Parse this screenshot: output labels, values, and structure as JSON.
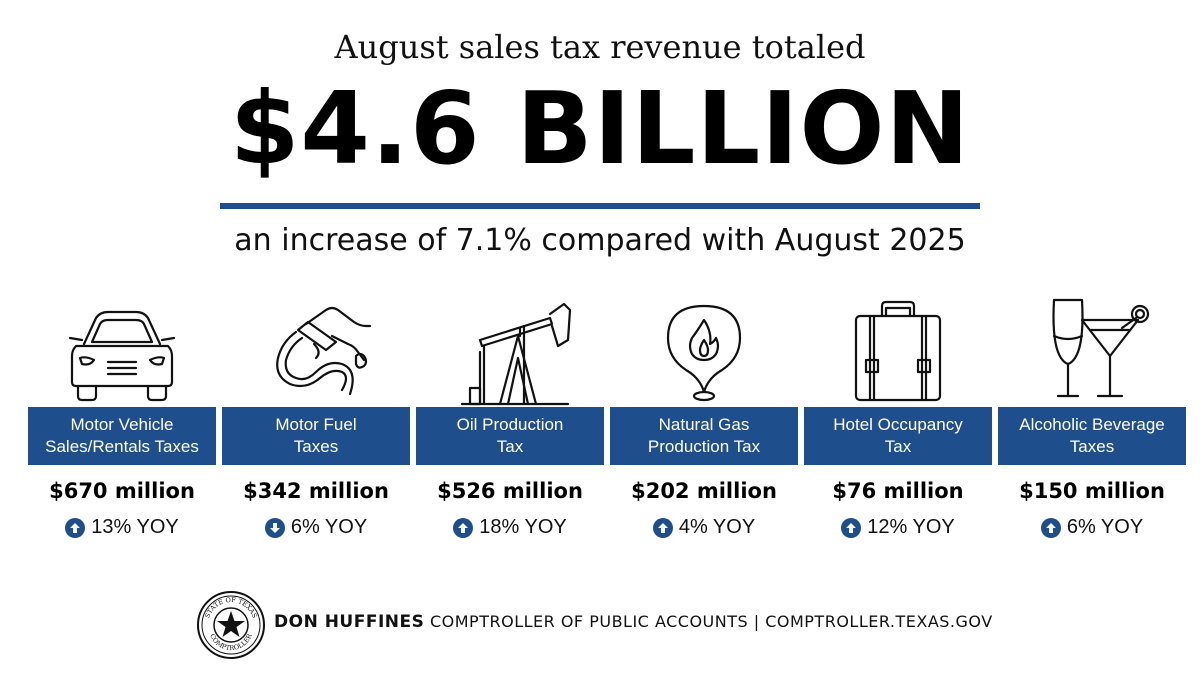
{
  "header": {
    "intro": "August sales tax revenue totaled",
    "total": "$4.6 BILLION",
    "comparison": "an increase of 7.1% compared with August 2025"
  },
  "cards": [
    {
      "label": "Motor Vehicle\nSales/Rentals Taxes",
      "amount": "$670 million",
      "yoy": "13% YOY",
      "direction": "up",
      "icon": "car-icon"
    },
    {
      "label": "Motor Fuel\nTaxes",
      "amount": "$342 million",
      "yoy": "6% YOY",
      "direction": "down",
      "icon": "fuel-nozzle-icon"
    },
    {
      "label": "Oil Production\nTax",
      "amount": "$526 million",
      "yoy": "18% YOY",
      "direction": "up",
      "icon": "oil-pump-jack-icon"
    },
    {
      "label": "Natural Gas\nProduction Tax",
      "amount": "$202 million",
      "yoy": "4% YOY",
      "direction": "up",
      "icon": "gas-flame-pin-icon"
    },
    {
      "label": "Hotel Occupancy\nTax",
      "amount": "$76 million",
      "yoy": "12% YOY",
      "direction": "up",
      "icon": "suitcase-icon"
    },
    {
      "label": "Alcoholic Beverage\nTaxes",
      "amount": "$150 million",
      "yoy": "6% YOY",
      "direction": "up",
      "icon": "cocktail-glasses-icon"
    }
  ],
  "footer": {
    "name": "DON HUFFINES",
    "title": "COMPTROLLER OF PUBLIC ACCOUNTS | COMPTROLLER.TEXAS.GOV",
    "seal_text": "STATE OF TEXAS COMPTROLLER"
  },
  "colors": {
    "accent": "#1f4e8c",
    "text": "#111111",
    "background": "#ffffff"
  }
}
